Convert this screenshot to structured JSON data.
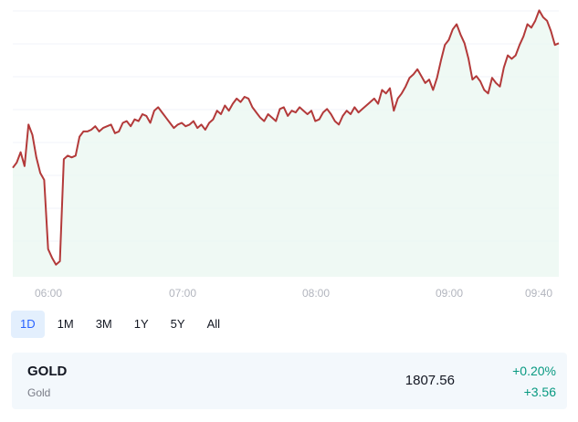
{
  "chart_data": {
    "type": "area",
    "x_ticks": [
      "06:00",
      "07:00",
      "08:00",
      "09:00",
      "09:40"
    ],
    "ylim": [
      1794,
      1810
    ],
    "values": [
      1800.3,
      1800.6,
      1801.2,
      1800.4,
      1802.8,
      1802.2,
      1800.9,
      1800.0,
      1799.6,
      1795.6,
      1795.1,
      1794.7,
      1794.9,
      1800.8,
      1801.0,
      1800.9,
      1801.0,
      1802.1,
      1802.4,
      1802.4,
      1802.5,
      1802.7,
      1802.4,
      1802.6,
      1802.7,
      1802.8,
      1802.3,
      1802.4,
      1802.9,
      1803.0,
      1802.7,
      1803.1,
      1803.0,
      1803.4,
      1803.3,
      1802.9,
      1803.6,
      1803.8,
      1803.5,
      1803.2,
      1802.9,
      1802.6,
      1802.8,
      1802.9,
      1802.7,
      1802.8,
      1803.0,
      1802.6,
      1802.8,
      1802.5,
      1802.9,
      1803.1,
      1803.6,
      1803.4,
      1803.9,
      1803.6,
      1804.0,
      1804.3,
      1804.1,
      1804.4,
      1804.3,
      1803.8,
      1803.5,
      1803.2,
      1803.0,
      1803.4,
      1803.2,
      1803.0,
      1803.7,
      1803.8,
      1803.3,
      1803.6,
      1803.5,
      1803.8,
      1803.6,
      1803.4,
      1803.6,
      1803.0,
      1803.1,
      1803.5,
      1803.7,
      1803.4,
      1803.0,
      1802.8,
      1803.3,
      1803.6,
      1803.4,
      1803.8,
      1803.5,
      1803.7,
      1803.9,
      1804.1,
      1804.3,
      1804.0,
      1804.8,
      1804.6,
      1804.9,
      1803.6,
      1804.3,
      1804.6,
      1805.0,
      1805.5,
      1805.7,
      1806.0,
      1805.6,
      1805.2,
      1805.4,
      1804.8,
      1805.5,
      1806.5,
      1807.4,
      1807.7,
      1808.3,
      1808.6,
      1808.0,
      1807.5,
      1806.6,
      1805.4,
      1805.6,
      1805.3,
      1804.8,
      1804.6,
      1805.5,
      1805.2,
      1805.0,
      1806.1,
      1806.8,
      1806.6,
      1806.8,
      1807.4,
      1807.9,
      1808.6,
      1808.4,
      1808.8,
      1809.4,
      1809.0,
      1808.8,
      1808.2,
      1807.4,
      1807.5
    ],
    "series": [
      {
        "values": "values",
        "color": "#b33a3a"
      }
    ],
    "line_color": "#b33a3a",
    "fill_color": "#e8f6ef",
    "grid": true
  },
  "range_tabs": [
    "1D",
    "1M",
    "3M",
    "1Y",
    "5Y",
    "All"
  ],
  "active_tab": "1D",
  "ticker": {
    "symbol": "GOLD",
    "name": "Gold",
    "price": "1807.56",
    "change_pct": "+0.20%",
    "change_abs": "+3.56",
    "change_color": "#089981"
  }
}
